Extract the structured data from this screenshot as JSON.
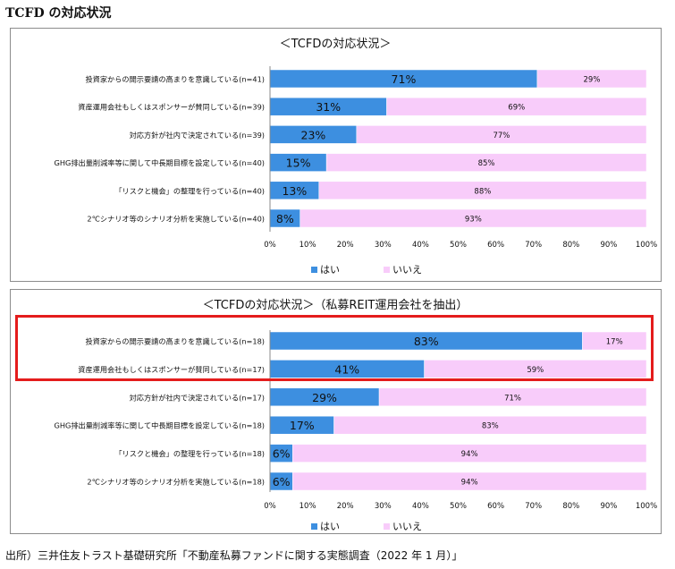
{
  "page_title": "TCFD の対応状況",
  "source": "出所）三井住友トラスト基礎研究所「不動産私募ファンドに関する実態調査（2022 年 1 月）」",
  "colors": {
    "yes": "#3d8fe0",
    "no": "#f8ccfa",
    "highlight": "#e41c1c"
  },
  "chart_data": [
    {
      "type": "bar",
      "orientation": "horizontal",
      "stacked": true,
      "title": "＜TCFDの対応状況＞",
      "categories": [
        "投資家からの開示要請の高まりを意識している(n=41)",
        "資産運用会社もしくはスポンサーが賛同している(n=39)",
        "対応方針が社内で決定されている(n=39)",
        "GHG排出量削減率等に関して中長期目標を設定している(n=40)",
        "「リスクと機会」の整理を行っている(n=40)",
        "2℃シナリオ等のシナリオ分析を実施している(n=40)"
      ],
      "series": [
        {
          "name": "はい",
          "values": [
            71,
            31,
            23,
            15,
            13,
            8
          ],
          "labels": [
            "71%",
            "31%",
            "23%",
            "15%",
            "13%",
            "8%"
          ]
        },
        {
          "name": "いいえ",
          "values": [
            29,
            69,
            77,
            85,
            88,
            93
          ],
          "labels": [
            "29%",
            "69%",
            "77%",
            "85%",
            "88%",
            "93%"
          ]
        }
      ],
      "xlim": [
        0,
        100
      ],
      "x_ticks": [
        "0%",
        "10%",
        "20%",
        "30%",
        "40%",
        "50%",
        "60%",
        "70%",
        "80%",
        "90%",
        "100%"
      ],
      "legend_position": "bottom",
      "grid": false
    },
    {
      "type": "bar",
      "orientation": "horizontal",
      "stacked": true,
      "title": "＜TCFDの対応状況＞（私募REIT運用会社を抽出）",
      "categories": [
        "投資家からの開示要請の高まりを意識している(n=18)",
        "資産運用会社もしくはスポンサーが賛同している(n=17)",
        "対応方針が社内で決定されている(n=17)",
        "GHG排出量削減率等に関して中長期目標を設定している(n=18)",
        "「リスクと機会」の整理を行っている(n=18)",
        "2℃シナリオ等のシナリオ分析を実施している(n=18)"
      ],
      "series": [
        {
          "name": "はい",
          "values": [
            83,
            41,
            29,
            17,
            6,
            6
          ],
          "labels": [
            "83%",
            "41%",
            "29%",
            "17%",
            "6%",
            "6%"
          ]
        },
        {
          "name": "いいえ",
          "values": [
            17,
            59,
            71,
            83,
            94,
            94
          ],
          "labels": [
            "17%",
            "59%",
            "71%",
            "83%",
            "94%",
            "94%"
          ]
        }
      ],
      "xlim": [
        0,
        100
      ],
      "x_ticks": [
        "0%",
        "10%",
        "20%",
        "30%",
        "40%",
        "50%",
        "60%",
        "70%",
        "80%",
        "90%",
        "100%"
      ],
      "legend_position": "bottom",
      "grid": false,
      "highlighted_rows": [
        0,
        1
      ]
    }
  ]
}
